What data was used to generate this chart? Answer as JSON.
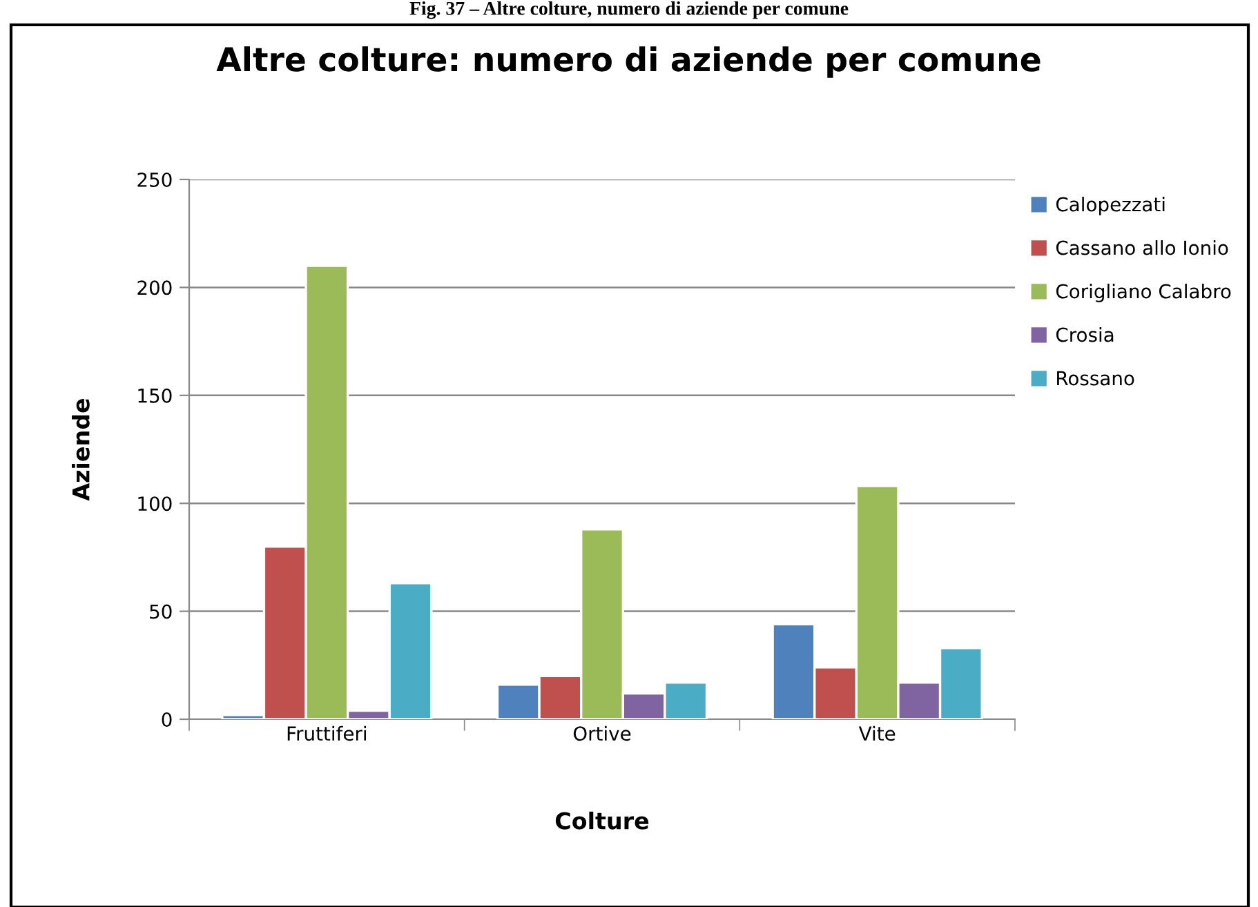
{
  "chart_data": {
    "type": "bar",
    "title": "Altre colture: numero di aziende per comune",
    "xlabel": "Colture",
    "ylabel": "Aziende",
    "annotations": [
      "Fig. 37 – Altre colture, numero di aziende per comune"
    ],
    "categories": [
      "Fruttiferi",
      "Ortive",
      "Vite"
    ],
    "series": [
      {
        "name": "Calopezzati",
        "color": "#4f81bd",
        "values": [
          2,
          16,
          44
        ]
      },
      {
        "name": "Cassano allo Ionio",
        "color": "#c0504d",
        "values": [
          80,
          20,
          24
        ]
      },
      {
        "name": "Corigliano Calabro",
        "color": "#9bbb59",
        "values": [
          210,
          88,
          108
        ]
      },
      {
        "name": "Crosia",
        "color": "#8064a2",
        "values": [
          4,
          12,
          17
        ]
      },
      {
        "name": "Rossano",
        "color": "#4bacc6",
        "values": [
          63,
          17,
          33
        ]
      }
    ],
    "ylim": [
      0,
      250
    ],
    "yticks": [
      0,
      50,
      100,
      150,
      200,
      250
    ],
    "grid": "y",
    "legend": "right"
  }
}
